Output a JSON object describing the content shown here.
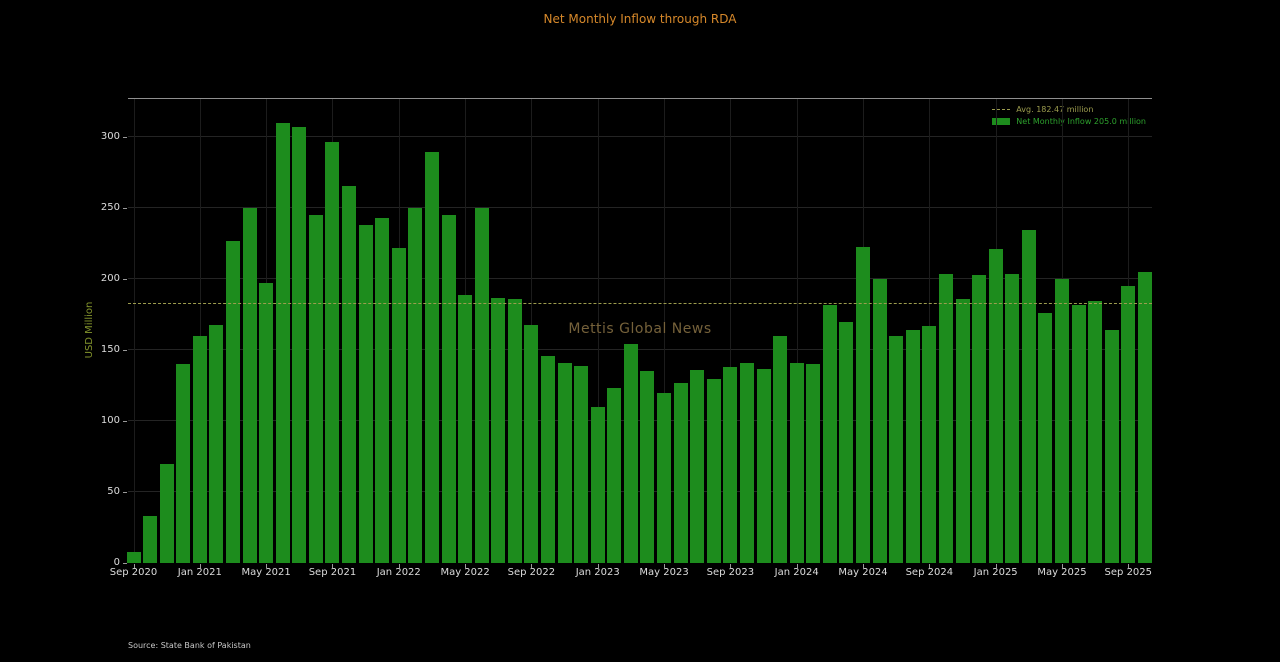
{
  "title": "Net Monthly Inflow through RDA",
  "watermark": "Mettis Global News",
  "source_note": "Source: State Bank of Pakistan",
  "legend": {
    "avg_label": "Avg. 182.47 million",
    "net_label": "Net Monthly Inflow 205.0 million"
  },
  "colors": {
    "background": "#000000",
    "bar": "#1d8c1d",
    "title": "#d6882a",
    "avg_line": "#9c9c4e",
    "ylabel": "#84952c",
    "tick_labels": "#dcdcdc",
    "gridline": "#242424",
    "watermark": "#75613a",
    "legend_net_text": "#2da12d",
    "source_text": "#c8c8c8"
  },
  "chart_data": {
    "type": "bar",
    "title": "Net Monthly Inflow through RDA",
    "xlabel": "",
    "ylabel": "USD Million",
    "ylim": [
      0,
      327
    ],
    "yticks": [
      0,
      50,
      100,
      150,
      200,
      250,
      300
    ],
    "grid": true,
    "legend_position": "upper right",
    "legend_entries": [
      "Avg. 182.47 million",
      "Net Monthly Inflow 205.0 million"
    ],
    "avg_value": 182.47,
    "latest_value": 205.0,
    "xtick_every": 4,
    "categories": [
      "Sep 2020",
      "Oct 2020",
      "Nov 2020",
      "Dec 2020",
      "Jan 2021",
      "Feb 2021",
      "Mar 2021",
      "Apr 2021",
      "May 2021",
      "Jun 2021",
      "Jul 2021",
      "Aug 2021",
      "Sep 2021",
      "Oct 2021",
      "Nov 2021",
      "Dec 2021",
      "Jan 2022",
      "Feb 2022",
      "Mar 2022",
      "Apr 2022",
      "May 2022",
      "Jun 2022",
      "Jul 2022",
      "Aug 2022",
      "Sep 2022",
      "Oct 2022",
      "Nov 2022",
      "Dec 2022",
      "Jan 2023",
      "Feb 2023",
      "Mar 2023",
      "Apr 2023",
      "May 2023",
      "Jun 2023",
      "Jul 2023",
      "Aug 2023",
      "Sep 2023",
      "Oct 2023",
      "Nov 2023",
      "Dec 2023",
      "Jan 2024",
      "Feb 2024",
      "Mar 2024",
      "Apr 2024",
      "May 2024",
      "Jun 2024",
      "Jul 2024",
      "Aug 2024",
      "Sep 2024",
      "Oct 2024",
      "Nov 2024",
      "Dec 2024",
      "Jan 2025",
      "Feb 2025",
      "Mar 2025",
      "Apr 2025",
      "May 2025",
      "Jun 2025",
      "Jul 2025",
      "Aug 2025",
      "Sep 2025",
      "Oct 2025"
    ],
    "values": [
      8,
      33,
      70,
      140,
      160,
      168,
      227,
      250,
      197,
      310,
      307,
      245,
      297,
      266,
      238,
      243,
      222,
      250,
      290,
      245,
      189,
      250,
      187,
      186,
      168,
      146,
      141,
      139,
      110,
      123,
      154,
      135,
      120,
      127,
      136,
      130,
      138,
      141,
      137,
      160,
      141,
      140,
      182,
      170,
      223,
      200,
      160,
      164,
      167,
      204,
      186,
      203,
      221,
      204,
      235,
      176,
      200,
      182,
      185,
      164,
      195,
      205
    ]
  }
}
